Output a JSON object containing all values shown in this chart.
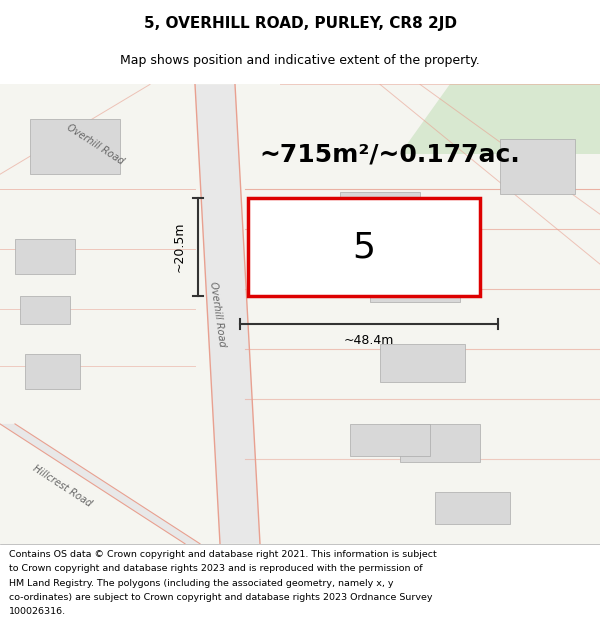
{
  "title": "5, OVERHILL ROAD, PURLEY, CR8 2JD",
  "subtitle": "Map shows position and indicative extent of the property.",
  "area_text": "~715m²/~0.177ac.",
  "property_number": "5",
  "width_label": "~48.4m",
  "height_label": "~20.5m",
  "footer_lines": [
    "Contains OS data © Crown copyright and database right 2021. This information is subject",
    "to Crown copyright and database rights 2023 and is reproduced with the permission of",
    "HM Land Registry. The polygons (including the associated geometry, namely x, y",
    "co-ordinates) are subject to Crown copyright and database rights 2023 Ordnance Survey",
    "100026316."
  ],
  "bg_color": "#f5f5f0",
  "road_line_color": "#e8a090",
  "property_border": "#dd0000",
  "building_fill": "#d8d8d8",
  "green_fill": "#d8e8d0",
  "dim_line_color": "#333333",
  "title_fontsize": 11,
  "subtitle_fontsize": 9,
  "area_fontsize": 18,
  "footer_fontsize": 6.8
}
